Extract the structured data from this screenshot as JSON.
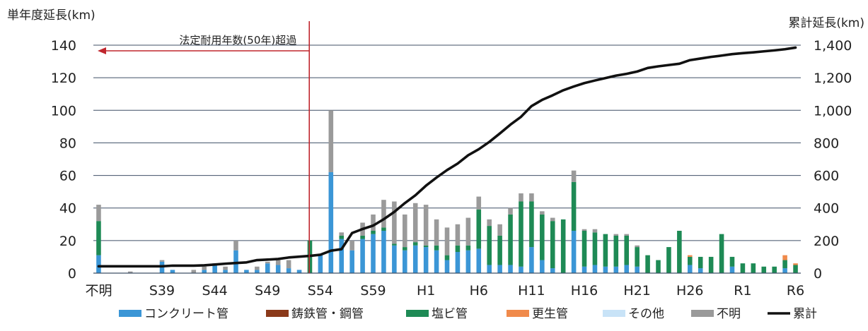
{
  "chart_data": {
    "type": "bar",
    "stacked": true,
    "secondary_series_type": "line",
    "left_axis": {
      "label": "単年度延長(km)",
      "ticks": [
        "0",
        "20",
        "40",
        "60",
        "80",
        "100",
        "120",
        "140"
      ],
      "range": [
        0,
        140
      ]
    },
    "right_axis": {
      "label": "累計延長(km)",
      "ticks": [
        "0",
        "200",
        "400",
        "600",
        "800",
        "1,000",
        "1,200",
        "1,400"
      ],
      "range": [
        0,
        1400
      ]
    },
    "x_tick_labels": [
      "不明",
      "S39",
      "S44",
      "S49",
      "S54",
      "S59",
      "H1",
      "H6",
      "H11",
      "H16",
      "H21",
      "H26",
      "R1",
      "R6"
    ],
    "annotation": {
      "text": "法定耐用年数(50年)超過",
      "line_color": "#c0262d"
    },
    "categories": [
      "不明",
      "S34",
      "S35",
      "S36",
      "S37",
      "S38",
      "S39",
      "S40",
      "S41",
      "S42",
      "S43",
      "S44",
      "S45",
      "S46",
      "S47",
      "S48",
      "S49",
      "S50",
      "S51",
      "S52",
      "S53",
      "S54",
      "S55",
      "S56",
      "S57",
      "S58",
      "S59",
      "S60",
      "S61",
      "S62",
      "S63",
      "H1",
      "H2",
      "H3",
      "H4",
      "H5",
      "H6",
      "H7",
      "H8",
      "H9",
      "H10",
      "H11",
      "H12",
      "H13",
      "H14",
      "H15",
      "H16",
      "H17",
      "H18",
      "H19",
      "H20",
      "H21",
      "H22",
      "H23",
      "H24",
      "H25",
      "H26",
      "H27",
      "H28",
      "H29",
      "H30",
      "R1",
      "R2",
      "R3",
      "R4",
      "R5",
      "R6"
    ],
    "series": [
      {
        "name": "コンクリート管",
        "color": "#3b96d6",
        "values": [
          11,
          0,
          0,
          0,
          0,
          0,
          7,
          2,
          0,
          0,
          2,
          5,
          2,
          14,
          2,
          2,
          6,
          5,
          3,
          2,
          0,
          11,
          62,
          21,
          14,
          21,
          24,
          26,
          17,
          14,
          17,
          16,
          14,
          8,
          13,
          14,
          15,
          5,
          5,
          5,
          4,
          16,
          8,
          3,
          0,
          26,
          4,
          5,
          4,
          4,
          5,
          4,
          0,
          0,
          0,
          0,
          5,
          3,
          0,
          0,
          4,
          0,
          0,
          0,
          0,
          3,
          0
        ]
      },
      {
        "name": "鋳鉄管・鋼管",
        "color": "#8b3a1a",
        "values": [
          0,
          0,
          0,
          0,
          0,
          0,
          0,
          0,
          0,
          0,
          0,
          0,
          0,
          0,
          0,
          0,
          0,
          0,
          0,
          0,
          0,
          0,
          0,
          0,
          0,
          0,
          0,
          0,
          0,
          0,
          0,
          0,
          0,
          0,
          0,
          0,
          0,
          0,
          0,
          0,
          0,
          0,
          0,
          0,
          0,
          0,
          0,
          0,
          0,
          0,
          0,
          0,
          0,
          0,
          0,
          0,
          0,
          0,
          0,
          0,
          0,
          0,
          0,
          0,
          0,
          0,
          0
        ]
      },
      {
        "name": "塩ビ管",
        "color": "#1e8a55",
        "values": [
          21,
          0,
          0,
          0,
          0,
          0,
          0,
          0,
          0,
          0,
          0,
          0,
          0,
          0,
          0,
          0,
          0,
          0,
          0,
          0,
          20,
          0,
          0,
          2,
          0,
          2,
          2,
          2,
          1,
          2,
          2,
          1,
          3,
          3,
          4,
          3,
          24,
          24,
          18,
          31,
          40,
          28,
          28,
          29,
          33,
          30,
          22,
          20,
          20,
          19,
          18,
          12,
          11,
          8,
          16,
          26,
          5,
          7,
          10,
          24,
          6,
          6,
          6,
          4,
          4,
          5,
          5
        ]
      },
      {
        "name": "更生管",
        "color": "#f08a4b",
        "values": [
          0,
          0,
          0,
          0,
          0,
          0,
          0,
          0,
          0,
          0,
          0,
          0,
          0,
          0,
          0,
          0,
          0,
          0,
          0,
          0,
          0,
          0,
          0,
          0,
          0,
          0,
          0,
          0,
          0,
          0,
          0,
          0,
          0,
          0,
          0,
          0,
          0,
          0,
          0,
          0,
          0,
          0,
          0,
          0,
          0,
          0,
          0,
          0,
          0,
          0,
          0,
          0,
          0,
          0,
          0,
          0,
          1,
          0,
          0,
          0,
          0,
          0,
          0,
          0,
          0,
          3,
          1
        ]
      },
      {
        "name": "その他",
        "color": "#c8e3f7",
        "values": [
          0,
          0,
          0,
          0,
          0,
          0,
          0,
          0,
          0,
          0,
          0,
          0,
          0,
          0,
          0,
          0,
          0,
          0,
          0,
          0,
          0,
          0,
          0,
          0,
          0,
          0,
          0,
          0,
          0,
          0,
          0,
          0,
          0,
          0,
          0,
          0,
          0,
          0,
          0,
          0,
          0,
          0,
          0,
          0,
          0,
          0,
          0,
          0,
          0,
          0,
          0,
          0,
          0,
          0,
          0,
          0,
          0,
          0,
          0,
          0,
          0,
          0,
          0,
          0,
          0,
          0,
          0
        ]
      },
      {
        "name": "不明",
        "color": "#9a9a9a",
        "values": [
          10,
          0,
          0,
          1,
          0,
          0,
          1,
          0,
          0,
          2,
          2,
          1,
          2,
          6,
          0,
          2,
          1,
          3,
          5,
          0,
          0,
          0,
          38,
          2,
          6,
          8,
          10,
          17,
          26,
          20,
          24,
          25,
          16,
          17,
          13,
          17,
          8,
          4,
          7,
          4,
          5,
          5,
          2,
          2,
          0,
          7,
          1,
          2,
          0,
          1,
          1,
          1,
          0,
          0,
          0,
          0,
          0,
          0,
          0,
          0,
          0,
          0,
          0,
          0,
          0,
          0,
          0
        ]
      }
    ],
    "cumulative": {
      "name": "累計",
      "color": "#111111",
      "values": [
        42,
        42,
        42,
        42,
        42,
        42,
        42,
        46,
        46,
        46,
        48,
        53,
        58,
        62,
        66,
        80,
        83,
        87,
        96,
        101,
        106,
        113,
        138,
        147,
        246,
        271,
        292,
        331,
        376,
        430,
        478,
        537,
        587,
        633,
        673,
        724,
        761,
        806,
        858,
        912,
        960,
        1026,
        1064,
        1092,
        1123,
        1146,
        1167,
        1183,
        1198,
        1213,
        1224,
        1238,
        1260,
        1270,
        1278,
        1286,
        1308,
        1318,
        1328,
        1336,
        1345,
        1351,
        1356,
        1362,
        1368,
        1375,
        1385
      ]
    }
  }
}
